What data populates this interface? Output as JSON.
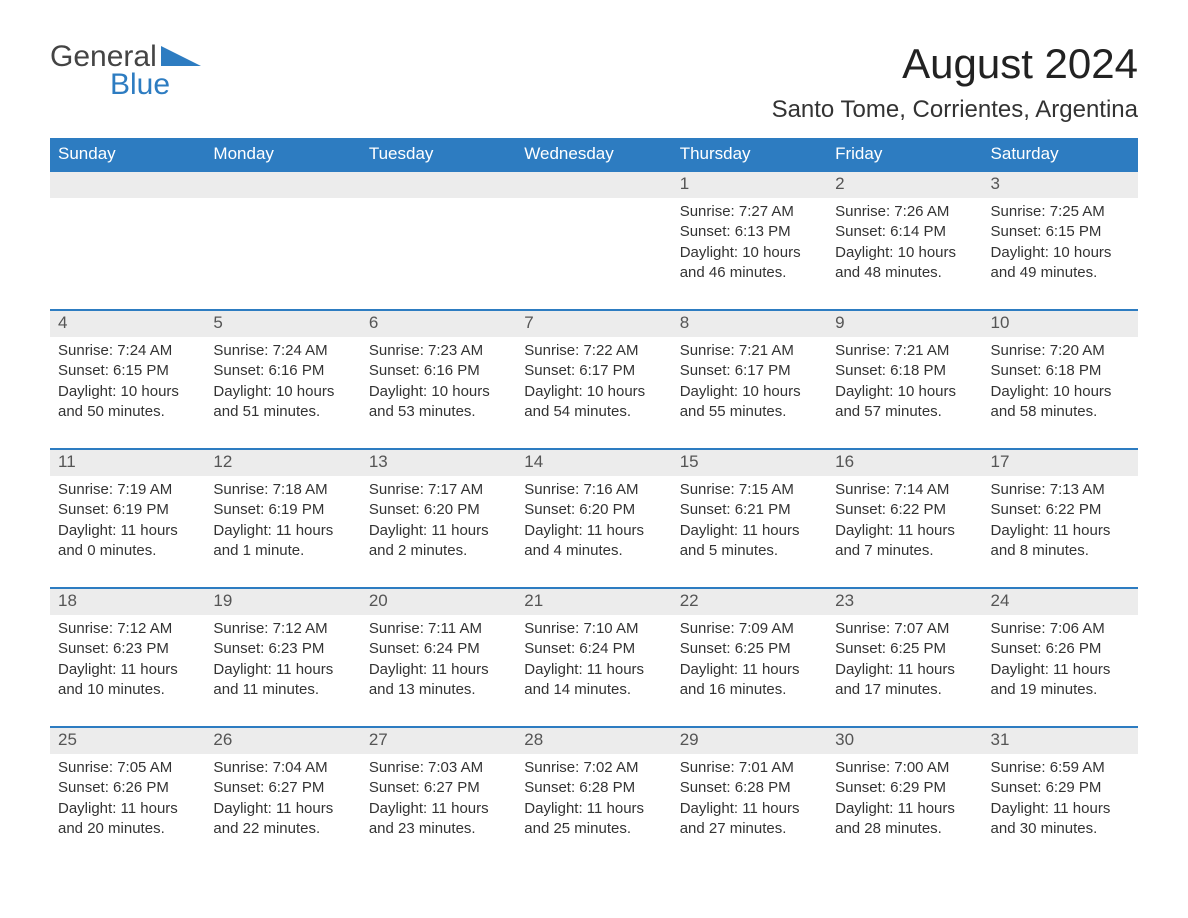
{
  "logo": {
    "word1": "General",
    "word2": "Blue",
    "accent_color": "#2d7cc1"
  },
  "title": "August 2024",
  "location": "Santo Tome, Corrientes, Argentina",
  "colors": {
    "header_bg": "#2d7cc1",
    "header_text": "#ffffff",
    "daynum_bg": "#ececec",
    "body_text": "#333333",
    "title_text": "#222222"
  },
  "fonts": {
    "title_pt": 42,
    "location_pt": 24,
    "header_pt": 17,
    "body_pt": 15
  },
  "day_headers": [
    "Sunday",
    "Monday",
    "Tuesday",
    "Wednesday",
    "Thursday",
    "Friday",
    "Saturday"
  ],
  "weeks": [
    [
      null,
      null,
      null,
      null,
      {
        "day": "1",
        "sunrise": "7:27 AM",
        "sunset": "6:13 PM",
        "daylight": "10 hours and 46 minutes."
      },
      {
        "day": "2",
        "sunrise": "7:26 AM",
        "sunset": "6:14 PM",
        "daylight": "10 hours and 48 minutes."
      },
      {
        "day": "3",
        "sunrise": "7:25 AM",
        "sunset": "6:15 PM",
        "daylight": "10 hours and 49 minutes."
      }
    ],
    [
      {
        "day": "4",
        "sunrise": "7:24 AM",
        "sunset": "6:15 PM",
        "daylight": "10 hours and 50 minutes."
      },
      {
        "day": "5",
        "sunrise": "7:24 AM",
        "sunset": "6:16 PM",
        "daylight": "10 hours and 51 minutes."
      },
      {
        "day": "6",
        "sunrise": "7:23 AM",
        "sunset": "6:16 PM",
        "daylight": "10 hours and 53 minutes."
      },
      {
        "day": "7",
        "sunrise": "7:22 AM",
        "sunset": "6:17 PM",
        "daylight": "10 hours and 54 minutes."
      },
      {
        "day": "8",
        "sunrise": "7:21 AM",
        "sunset": "6:17 PM",
        "daylight": "10 hours and 55 minutes."
      },
      {
        "day": "9",
        "sunrise": "7:21 AM",
        "sunset": "6:18 PM",
        "daylight": "10 hours and 57 minutes."
      },
      {
        "day": "10",
        "sunrise": "7:20 AM",
        "sunset": "6:18 PM",
        "daylight": "10 hours and 58 minutes."
      }
    ],
    [
      {
        "day": "11",
        "sunrise": "7:19 AM",
        "sunset": "6:19 PM",
        "daylight": "11 hours and 0 minutes."
      },
      {
        "day": "12",
        "sunrise": "7:18 AM",
        "sunset": "6:19 PM",
        "daylight": "11 hours and 1 minute."
      },
      {
        "day": "13",
        "sunrise": "7:17 AM",
        "sunset": "6:20 PM",
        "daylight": "11 hours and 2 minutes."
      },
      {
        "day": "14",
        "sunrise": "7:16 AM",
        "sunset": "6:20 PM",
        "daylight": "11 hours and 4 minutes."
      },
      {
        "day": "15",
        "sunrise": "7:15 AM",
        "sunset": "6:21 PM",
        "daylight": "11 hours and 5 minutes."
      },
      {
        "day": "16",
        "sunrise": "7:14 AM",
        "sunset": "6:22 PM",
        "daylight": "11 hours and 7 minutes."
      },
      {
        "day": "17",
        "sunrise": "7:13 AM",
        "sunset": "6:22 PM",
        "daylight": "11 hours and 8 minutes."
      }
    ],
    [
      {
        "day": "18",
        "sunrise": "7:12 AM",
        "sunset": "6:23 PM",
        "daylight": "11 hours and 10 minutes."
      },
      {
        "day": "19",
        "sunrise": "7:12 AM",
        "sunset": "6:23 PM",
        "daylight": "11 hours and 11 minutes."
      },
      {
        "day": "20",
        "sunrise": "7:11 AM",
        "sunset": "6:24 PM",
        "daylight": "11 hours and 13 minutes."
      },
      {
        "day": "21",
        "sunrise": "7:10 AM",
        "sunset": "6:24 PM",
        "daylight": "11 hours and 14 minutes."
      },
      {
        "day": "22",
        "sunrise": "7:09 AM",
        "sunset": "6:25 PM",
        "daylight": "11 hours and 16 minutes."
      },
      {
        "day": "23",
        "sunrise": "7:07 AM",
        "sunset": "6:25 PM",
        "daylight": "11 hours and 17 minutes."
      },
      {
        "day": "24",
        "sunrise": "7:06 AM",
        "sunset": "6:26 PM",
        "daylight": "11 hours and 19 minutes."
      }
    ],
    [
      {
        "day": "25",
        "sunrise": "7:05 AM",
        "sunset": "6:26 PM",
        "daylight": "11 hours and 20 minutes."
      },
      {
        "day": "26",
        "sunrise": "7:04 AM",
        "sunset": "6:27 PM",
        "daylight": "11 hours and 22 minutes."
      },
      {
        "day": "27",
        "sunrise": "7:03 AM",
        "sunset": "6:27 PM",
        "daylight": "11 hours and 23 minutes."
      },
      {
        "day": "28",
        "sunrise": "7:02 AM",
        "sunset": "6:28 PM",
        "daylight": "11 hours and 25 minutes."
      },
      {
        "day": "29",
        "sunrise": "7:01 AM",
        "sunset": "6:28 PM",
        "daylight": "11 hours and 27 minutes."
      },
      {
        "day": "30",
        "sunrise": "7:00 AM",
        "sunset": "6:29 PM",
        "daylight": "11 hours and 28 minutes."
      },
      {
        "day": "31",
        "sunrise": "6:59 AM",
        "sunset": "6:29 PM",
        "daylight": "11 hours and 30 minutes."
      }
    ]
  ],
  "labels": {
    "sunrise": "Sunrise: ",
    "sunset": "Sunset: ",
    "daylight": "Daylight: "
  }
}
